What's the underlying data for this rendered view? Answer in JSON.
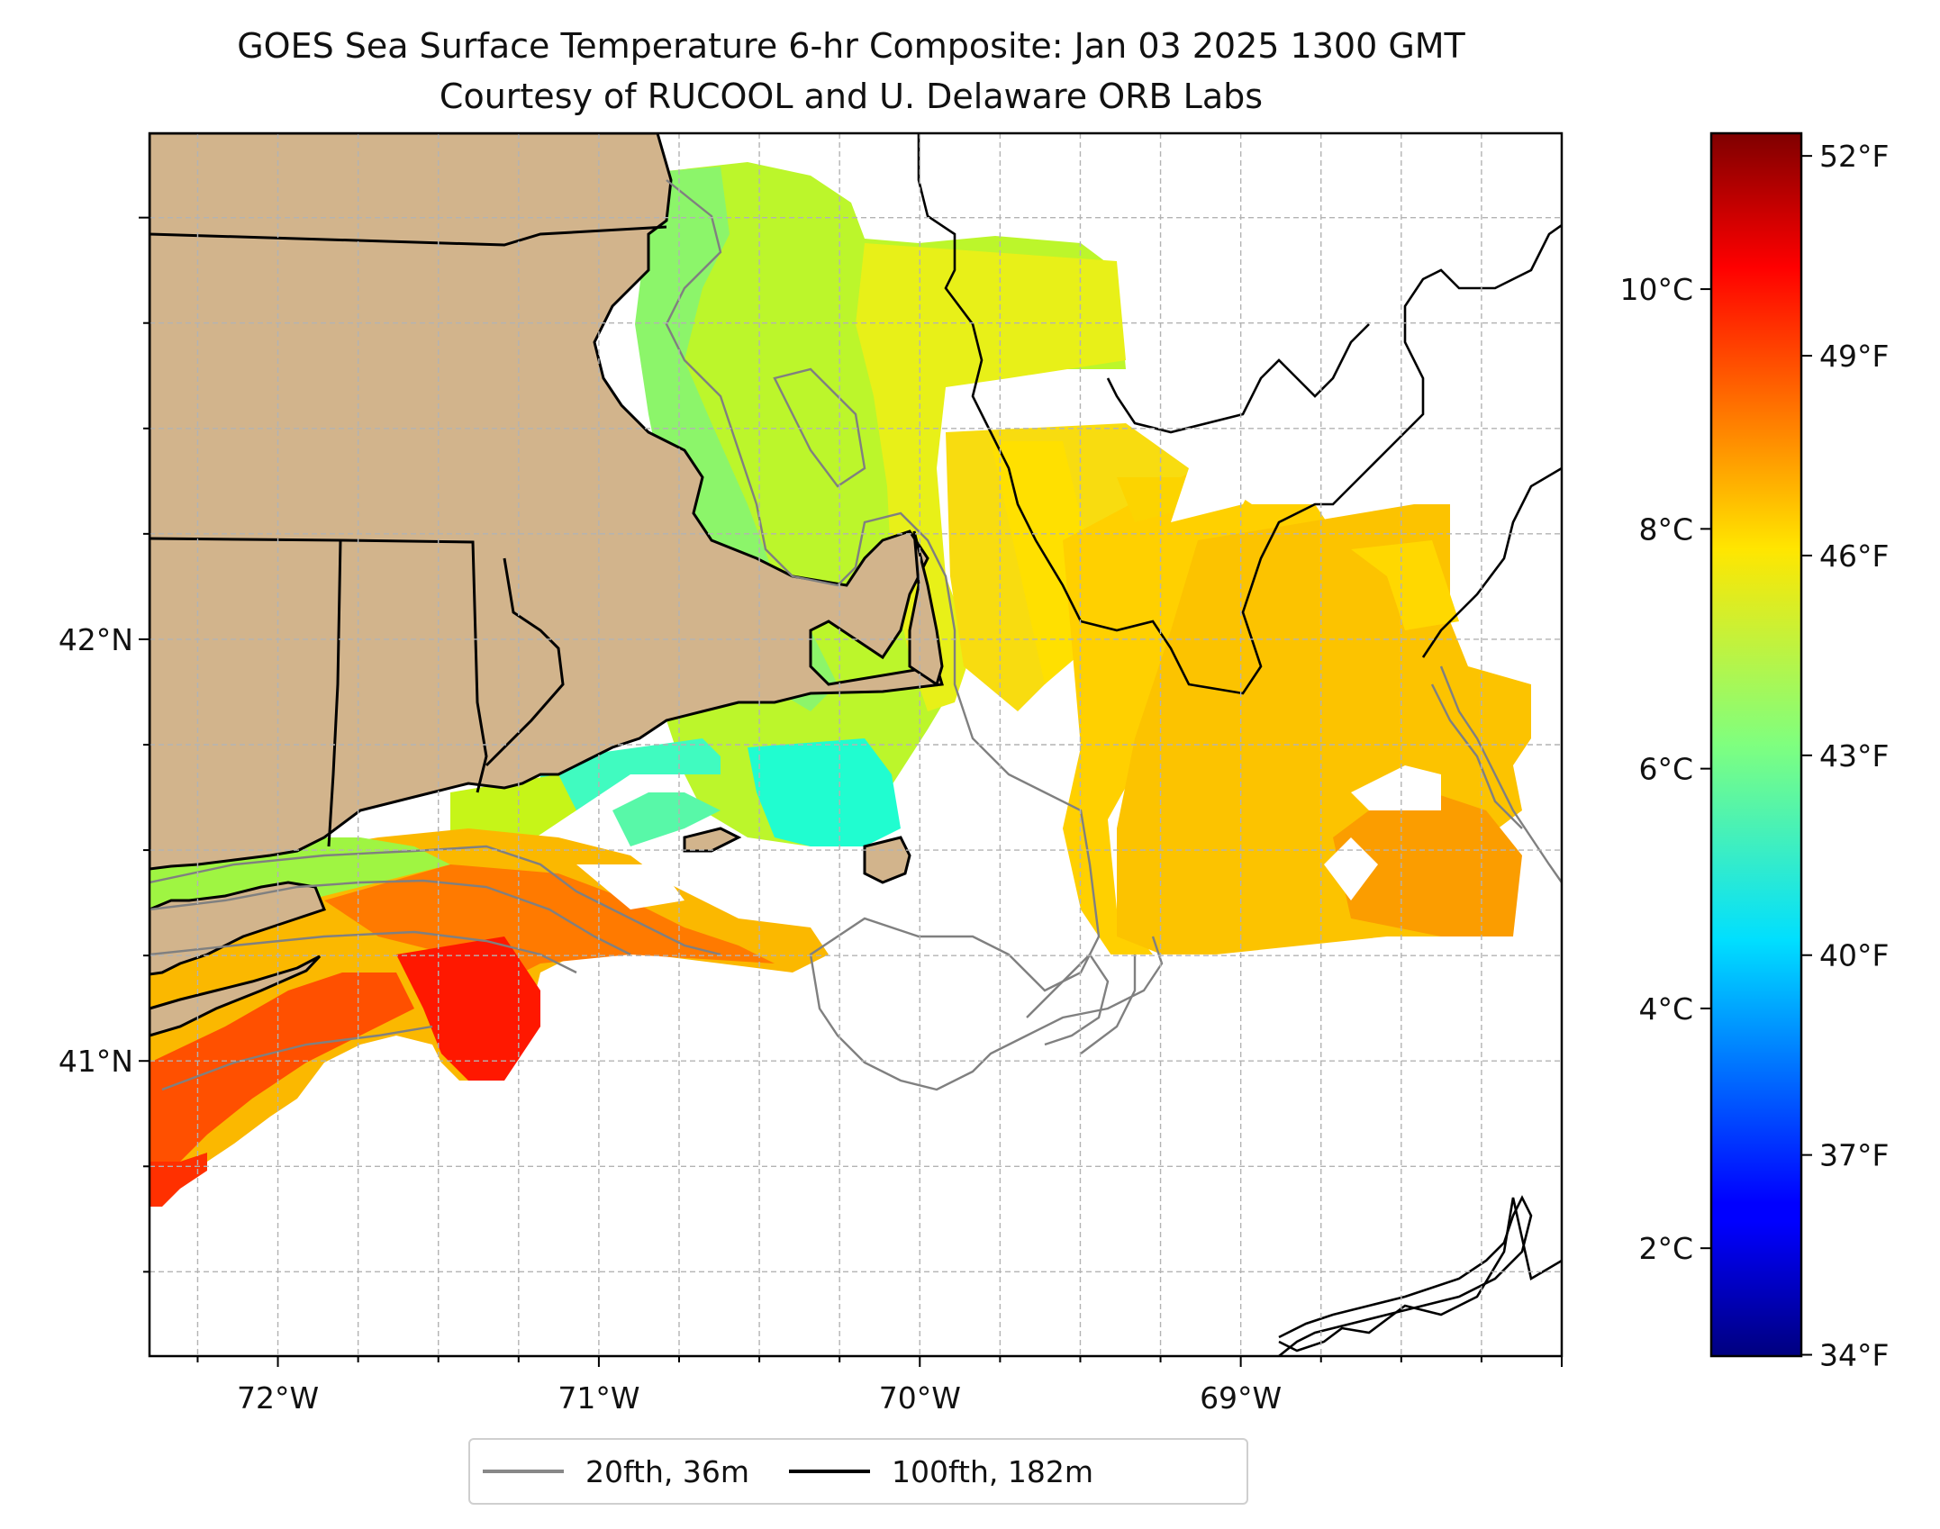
{
  "title": {
    "line1": "GOES Sea Surface Temperature 6-hr Composite: Jan 03 2025 1300 GMT",
    "line2": "Courtesy of RUCOOL and U. Delaware ORB Labs"
  },
  "map": {
    "lon_range": [
      -72.4,
      -68.0
    ],
    "lat_range": [
      40.3,
      43.2
    ],
    "lon_ticks": [
      {
        "value": -72,
        "label": "72°W"
      },
      {
        "value": -71,
        "label": "71°W"
      },
      {
        "value": -70,
        "label": "70°W"
      },
      {
        "value": -69,
        "label": "69°W"
      }
    ],
    "lat_ticks": [
      {
        "value": 42,
        "label": "42°N"
      },
      {
        "value": 41,
        "label": "41°N"
      }
    ],
    "gridlines": "dashed",
    "colors": {
      "land": "#d2b48c",
      "ocean_no_data": "#ffffff",
      "isobath_20fth": "#808080",
      "isobath_100fth": "#000000"
    }
  },
  "colorbar": {
    "colormap": "jet",
    "range_celsius": [
      1.1,
      11.3
    ],
    "celsius_ticks": [
      {
        "value": 2,
        "label": "2°C"
      },
      {
        "value": 4,
        "label": "4°C"
      },
      {
        "value": 6,
        "label": "6°C"
      },
      {
        "value": 8,
        "label": "8°C"
      },
      {
        "value": 10,
        "label": "10°C"
      }
    ],
    "fahrenheit_ticks": [
      {
        "value": 34,
        "label": "34°F"
      },
      {
        "value": 37,
        "label": "37°F"
      },
      {
        "value": 40,
        "label": "40°F"
      },
      {
        "value": 43,
        "label": "43°F"
      },
      {
        "value": 46,
        "label": "46°F"
      },
      {
        "value": 49,
        "label": "49°F"
      },
      {
        "value": 52,
        "label": "52°F"
      }
    ]
  },
  "legend": {
    "items": [
      {
        "label": "20fth, 36m",
        "color": "#808080"
      },
      {
        "label": "100fth, 182m",
        "color": "#000000"
      }
    ]
  }
}
